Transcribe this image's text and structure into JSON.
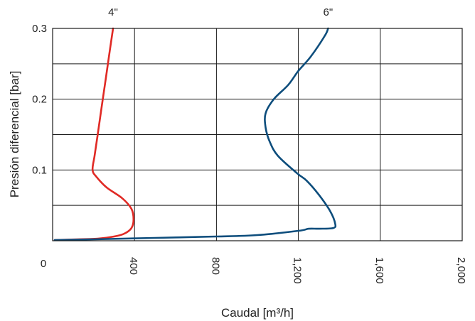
{
  "chart_data": {
    "type": "line",
    "xlabel": "Caudal [m³/h]",
    "ylabel": "Presión diferencial [bar]",
    "xlim": [
      0,
      2000
    ],
    "ylim": [
      0,
      0.3
    ],
    "x_ticks": [
      0,
      400,
      800,
      1200,
      1600,
      2000
    ],
    "x_tick_labels": [
      "0",
      "400",
      "800",
      "1,200",
      "1,600",
      "2,000"
    ],
    "y_ticks": [
      0.1,
      0.2,
      0.3
    ],
    "y_tick_labels": [
      "0.1",
      "0.2",
      "0.3"
    ],
    "y_minor_grid": [
      0.05,
      0.15,
      0.25
    ],
    "grid": true,
    "series": [
      {
        "name": "4\"",
        "color": "#e02a25",
        "points": [
          [
            10,
            0.001
          ],
          [
            120,
            0.002
          ],
          [
            220,
            0.003
          ],
          [
            300,
            0.006
          ],
          [
            350,
            0.01
          ],
          [
            385,
            0.018
          ],
          [
            395,
            0.03
          ],
          [
            385,
            0.045
          ],
          [
            340,
            0.06
          ],
          [
            265,
            0.075
          ],
          [
            215,
            0.09
          ],
          [
            195,
            0.1
          ],
          [
            205,
            0.12
          ],
          [
            220,
            0.15
          ],
          [
            240,
            0.19
          ],
          [
            260,
            0.23
          ],
          [
            280,
            0.27
          ],
          [
            295,
            0.3
          ]
        ]
      },
      {
        "name": "6\"",
        "color": "#0d4d7c",
        "points": [
          [
            10,
            0.001
          ],
          [
            200,
            0.002
          ],
          [
            500,
            0.004
          ],
          [
            800,
            0.006
          ],
          [
            1000,
            0.008
          ],
          [
            1200,
            0.014
          ],
          [
            1250,
            0.017
          ],
          [
            1300,
            0.017
          ],
          [
            1370,
            0.018
          ],
          [
            1380,
            0.024
          ],
          [
            1355,
            0.042
          ],
          [
            1300,
            0.065
          ],
          [
            1240,
            0.085
          ],
          [
            1195,
            0.095
          ],
          [
            1100,
            0.12
          ],
          [
            1060,
            0.14
          ],
          [
            1040,
            0.16
          ],
          [
            1040,
            0.18
          ],
          [
            1080,
            0.2
          ],
          [
            1150,
            0.22
          ],
          [
            1200,
            0.24
          ],
          [
            1260,
            0.26
          ],
          [
            1330,
            0.29
          ],
          [
            1345,
            0.3
          ]
        ]
      }
    ]
  }
}
